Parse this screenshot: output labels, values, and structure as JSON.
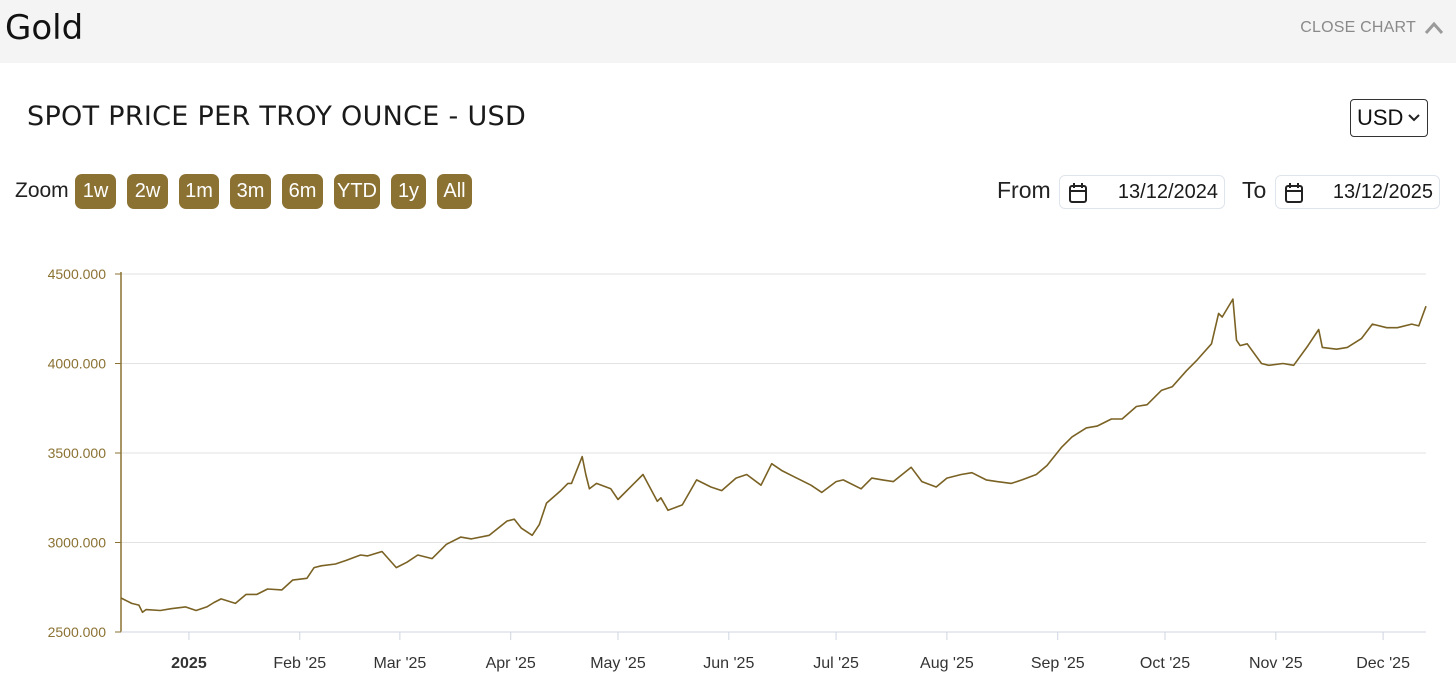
{
  "header": {
    "title": "Gold",
    "close_label": "CLOSE CHART"
  },
  "chart_title": "SPOT PRICE PER TROY OUNCE - USD",
  "currency": {
    "selected": "USD"
  },
  "zoom": {
    "label": "Zoom",
    "buttons": [
      "1w",
      "2w",
      "1m",
      "3m",
      "6m",
      "YTD",
      "1y",
      "All"
    ]
  },
  "range": {
    "from_label": "From",
    "from_value": "13/12/2024",
    "to_label": "To",
    "to_value": "13/12/2025"
  },
  "colors": {
    "accent": "#8b7233",
    "line": "#7a6224",
    "grid": "#e2e2e2",
    "header_bg": "#f4f4f4"
  },
  "icons": {
    "close": "chevron-up-icon",
    "calendar": "calendar-icon",
    "select": "chevron-down-icon"
  },
  "chart_data": {
    "type": "line",
    "title": "SPOT PRICE PER TROY OUNCE - USD",
    "xlabel": "",
    "ylabel": "",
    "y_ticks": [
      "2500.000",
      "3000.000",
      "3500.000",
      "4000.000",
      "4500.000"
    ],
    "ylim": [
      2500,
      4500
    ],
    "xlim": [
      "2024-12-13",
      "2025-12-13"
    ],
    "x_ticks": [
      {
        "date": "2025-01-01",
        "label": "2025",
        "bold": true
      },
      {
        "date": "2025-02-01",
        "label": "Feb '25"
      },
      {
        "date": "2025-03-01",
        "label": "Mar '25"
      },
      {
        "date": "2025-04-01",
        "label": "Apr '25"
      },
      {
        "date": "2025-05-01",
        "label": "May '25"
      },
      {
        "date": "2025-06-01",
        "label": "Jun '25"
      },
      {
        "date": "2025-07-01",
        "label": "Jul '25"
      },
      {
        "date": "2025-08-01",
        "label": "Aug '25"
      },
      {
        "date": "2025-09-01",
        "label": "Sep '25"
      },
      {
        "date": "2025-10-01",
        "label": "Oct '25"
      },
      {
        "date": "2025-11-01",
        "label": "Nov '25"
      },
      {
        "date": "2025-12-01",
        "label": "Dec '25"
      }
    ],
    "grid": true,
    "legend": "none",
    "series": [
      {
        "x": [
          "2024-12-13",
          "2024-12-16",
          "2024-12-18",
          "2024-12-19",
          "2024-12-20",
          "2024-12-24",
          "2024-12-27",
          "2024-12-31",
          "2025-01-03",
          "2025-01-06",
          "2025-01-08",
          "2025-01-10",
          "2025-01-14",
          "2025-01-17",
          "2025-01-20",
          "2025-01-23",
          "2025-01-27",
          "2025-01-30",
          "2025-02-03",
          "2025-02-05",
          "2025-02-07",
          "2025-02-11",
          "2025-02-14",
          "2025-02-18",
          "2025-02-20",
          "2025-02-24",
          "2025-02-28",
          "2025-03-03",
          "2025-03-06",
          "2025-03-10",
          "2025-03-14",
          "2025-03-18",
          "2025-03-21",
          "2025-03-26",
          "2025-03-31",
          "2025-04-02",
          "2025-04-04",
          "2025-04-07",
          "2025-04-09",
          "2025-04-11",
          "2025-04-15",
          "2025-04-17",
          "2025-04-18",
          "2025-04-21",
          "2025-04-22",
          "2025-04-23",
          "2025-04-25",
          "2025-04-29",
          "2025-05-01",
          "2025-05-05",
          "2025-05-08",
          "2025-05-12",
          "2025-05-13",
          "2025-05-15",
          "2025-05-19",
          "2025-05-23",
          "2025-05-27",
          "2025-05-30",
          "2025-06-03",
          "2025-06-06",
          "2025-06-10",
          "2025-06-13",
          "2025-06-16",
          "2025-06-19",
          "2025-06-24",
          "2025-06-27",
          "2025-07-01",
          "2025-07-03",
          "2025-07-08",
          "2025-07-11",
          "2025-07-14",
          "2025-07-17",
          "2025-07-22",
          "2025-07-25",
          "2025-07-29",
          "2025-08-01",
          "2025-08-05",
          "2025-08-08",
          "2025-08-12",
          "2025-08-15",
          "2025-08-19",
          "2025-08-22",
          "2025-08-26",
          "2025-08-29",
          "2025-09-02",
          "2025-09-05",
          "2025-09-09",
          "2025-09-12",
          "2025-09-16",
          "2025-09-19",
          "2025-09-23",
          "2025-09-26",
          "2025-09-30",
          "2025-10-03",
          "2025-10-07",
          "2025-10-10",
          "2025-10-14",
          "2025-10-16",
          "2025-10-17",
          "2025-10-20",
          "2025-10-21",
          "2025-10-22",
          "2025-10-24",
          "2025-10-28",
          "2025-10-30",
          "2025-11-03",
          "2025-11-06",
          "2025-11-10",
          "2025-11-13",
          "2025-11-14",
          "2025-11-18",
          "2025-11-21",
          "2025-11-25",
          "2025-11-28",
          "2025-12-02",
          "2025-12-05",
          "2025-12-09",
          "2025-12-11",
          "2025-12-13"
        ],
        "values": [
          2690,
          2660,
          2650,
          2610,
          2625,
          2620,
          2630,
          2640,
          2620,
          2640,
          2665,
          2685,
          2660,
          2710,
          2710,
          2740,
          2735,
          2790,
          2800,
          2860,
          2870,
          2880,
          2900,
          2930,
          2925,
          2950,
          2860,
          2890,
          2930,
          2910,
          2990,
          3030,
          3020,
          3040,
          3120,
          3130,
          3080,
          3040,
          3100,
          3220,
          3290,
          3330,
          3330,
          3480,
          3380,
          3300,
          3330,
          3300,
          3240,
          3320,
          3380,
          3230,
          3250,
          3180,
          3210,
          3350,
          3310,
          3290,
          3360,
          3380,
          3320,
          3440,
          3400,
          3370,
          3320,
          3280,
          3340,
          3350,
          3300,
          3360,
          3350,
          3340,
          3420,
          3340,
          3310,
          3360,
          3380,
          3390,
          3350,
          3340,
          3330,
          3350,
          3380,
          3430,
          3530,
          3590,
          3640,
          3650,
          3690,
          3690,
          3760,
          3770,
          3850,
          3870,
          3960,
          4020,
          4110,
          4280,
          4260,
          4360,
          4130,
          4100,
          4110,
          4000,
          3990,
          4000,
          3990,
          4100,
          4190,
          4090,
          4080,
          4090,
          4140,
          4220,
          4200,
          4200,
          4220,
          4210,
          4320
        ]
      }
    ]
  }
}
